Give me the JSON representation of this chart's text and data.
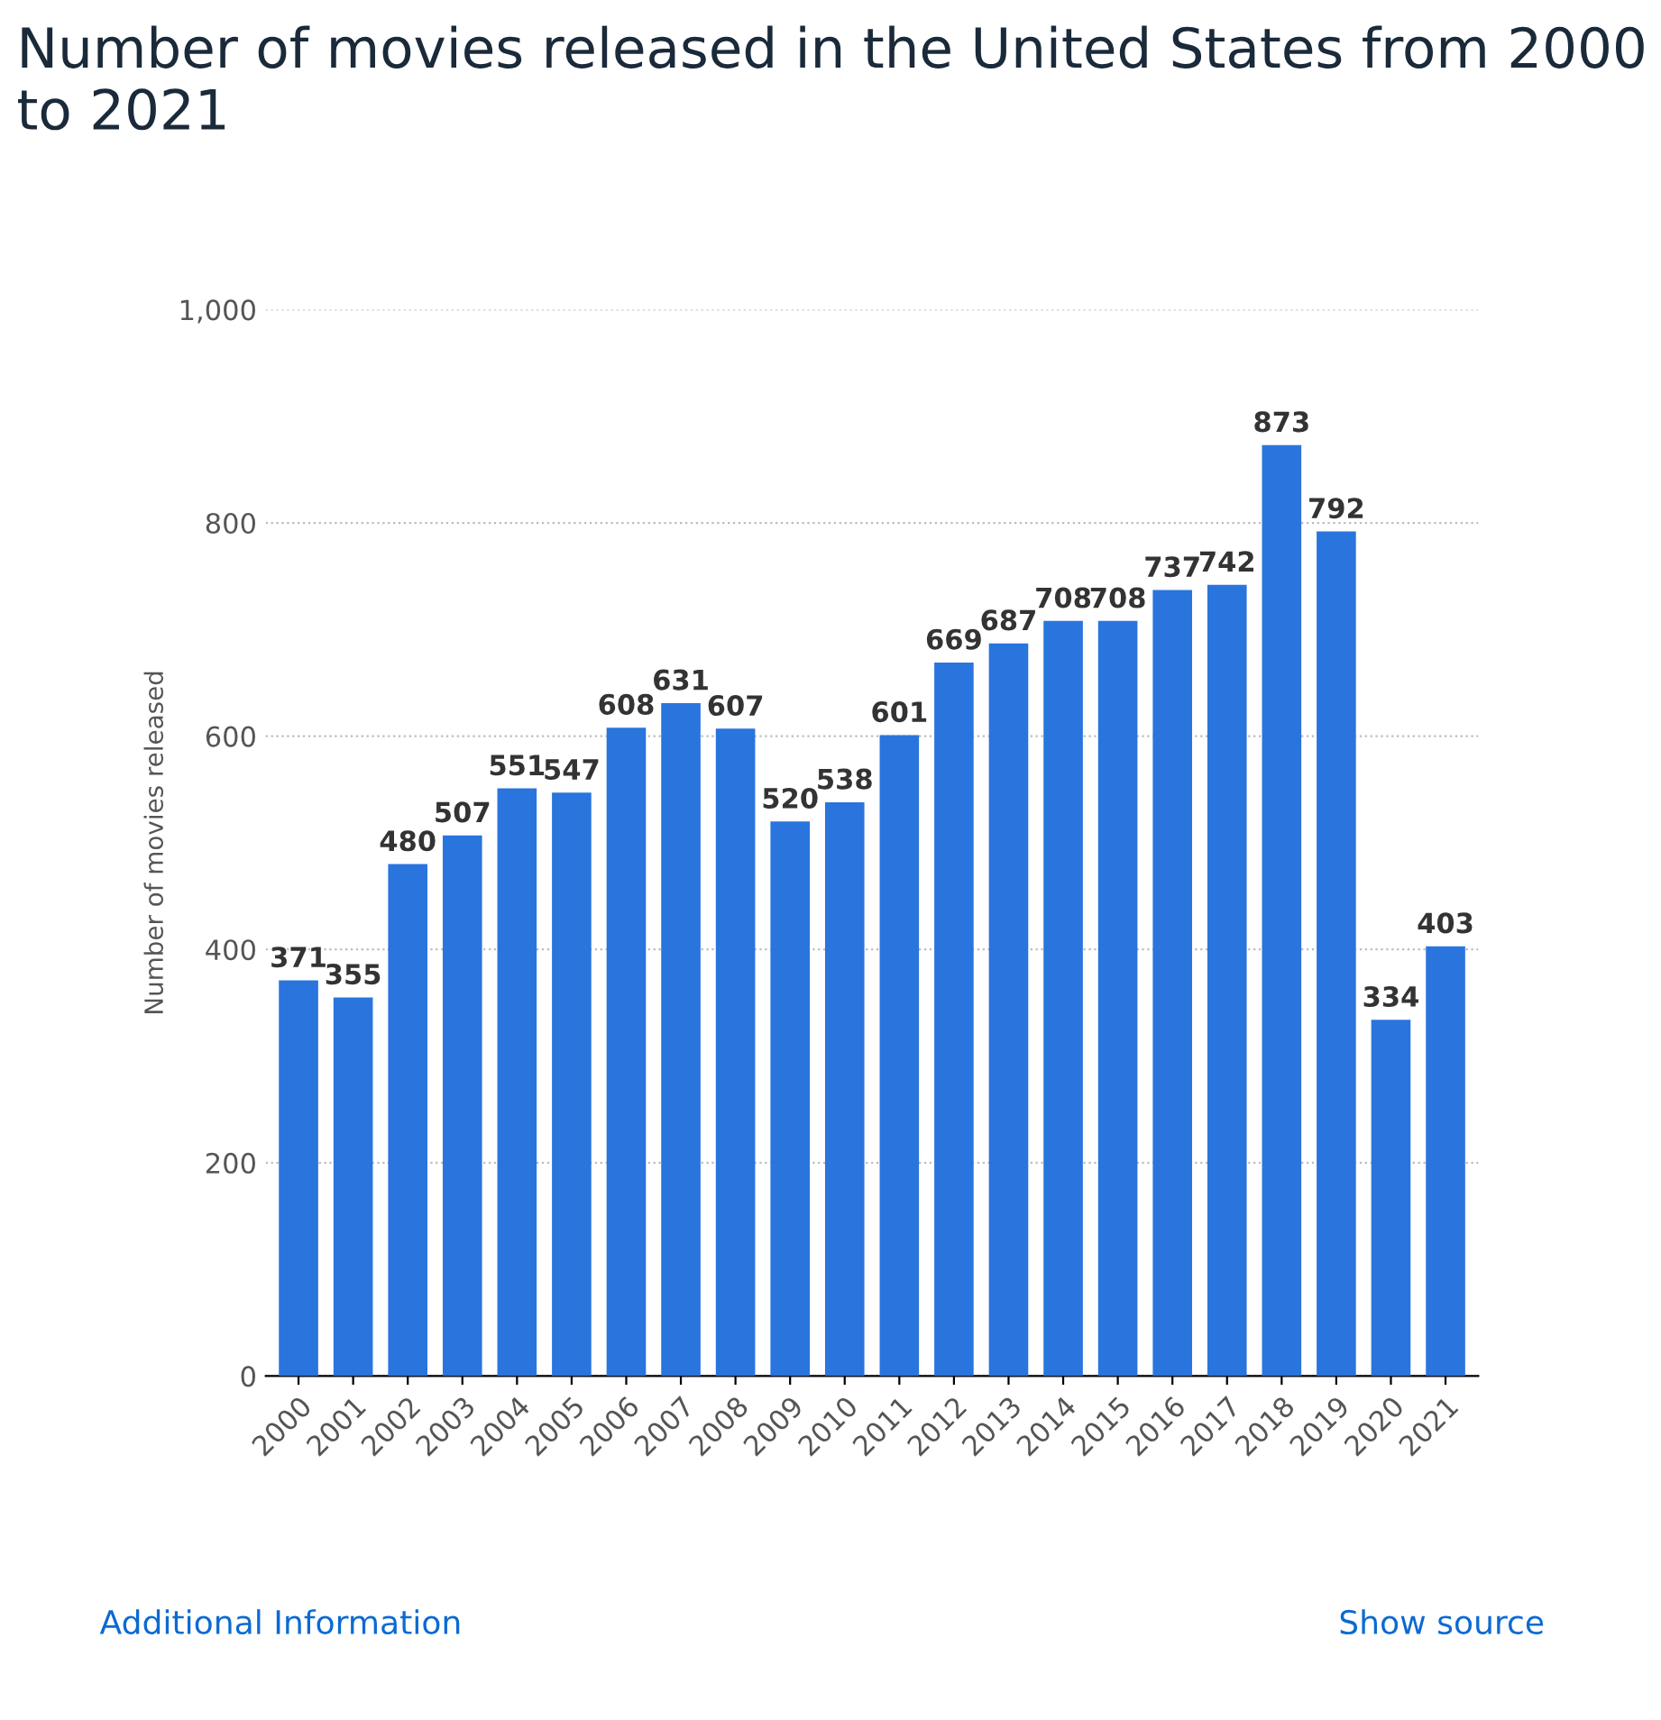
{
  "chart_data": {
    "type": "bar",
    "title": "Number of movies released in the United States from 2000 to 2021",
    "ylabel": "Number of movies released",
    "categories": [
      "2000",
      "2001",
      "2002",
      "2003",
      "2004",
      "2005",
      "2006",
      "2007",
      "2008",
      "2009",
      "2010",
      "2011",
      "2012",
      "2013",
      "2014",
      "2015",
      "2016",
      "2017",
      "2018",
      "2019",
      "2020",
      "2021"
    ],
    "values": [
      371,
      355,
      480,
      507,
      551,
      547,
      608,
      631,
      607,
      520,
      538,
      601,
      669,
      687,
      708,
      708,
      737,
      742,
      873,
      792,
      334,
      403
    ],
    "color": "#2a74dd",
    "ylim": [
      0,
      1000
    ],
    "yticks": [
      0,
      200,
      400,
      600,
      800,
      {
        "value": 1000,
        "label": "1,000"
      }
    ],
    "grid": "y",
    "data_labels": true,
    "annotations": [
      "Additional Information",
      "Show source"
    ]
  }
}
